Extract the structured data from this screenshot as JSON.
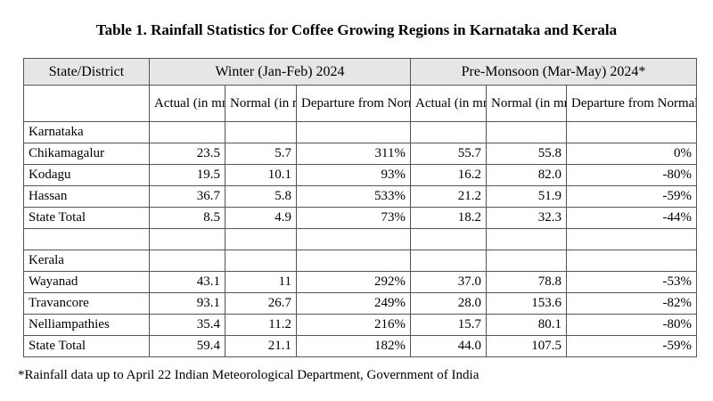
{
  "title": "Table 1. Rainfall Statistics for Coffee Growing Regions in Karnataka and Kerala",
  "headers": {
    "col1": "State/District",
    "winter": "Winter (Jan-Feb) 2024",
    "premonsoon": "Pre-Monsoon (Mar-May) 2024*",
    "sub": {
      "actual": "Actual (in mm)",
      "normal": "Normal (in mm)",
      "departure": "Departure from Normal"
    }
  },
  "karnataka": {
    "label": "Karnataka",
    "rows": [
      {
        "name": "Chikamagalur",
        "w_actual": "23.5",
        "w_normal": "5.7",
        "w_dep": "311%",
        "p_actual": "55.7",
        "p_normal": "55.8",
        "p_dep": "0%"
      },
      {
        "name": "Kodagu",
        "w_actual": "19.5",
        "w_normal": "10.1",
        "w_dep": "93%",
        "p_actual": "16.2",
        "p_normal": "82.0",
        "p_dep": "-80%"
      },
      {
        "name": "Hassan",
        "w_actual": "36.7",
        "w_normal": "5.8",
        "w_dep": "533%",
        "p_actual": "21.2",
        "p_normal": "51.9",
        "p_dep": "-59%"
      }
    ],
    "total": {
      "name": "State Total",
      "w_actual": "8.5",
      "w_normal": "4.9",
      "w_dep": "73%",
      "p_actual": "18.2",
      "p_normal": "32.3",
      "p_dep": "-44%"
    }
  },
  "kerala": {
    "label": "Kerala",
    "rows": [
      {
        "name": "Wayanad",
        "w_actual": "43.1",
        "w_normal": "11",
        "w_dep": "292%",
        "p_actual": "37.0",
        "p_normal": "78.8",
        "p_dep": "-53%"
      },
      {
        "name": "Travancore",
        "w_actual": "93.1",
        "w_normal": "26.7",
        "w_dep": "249%",
        "p_actual": "28.0",
        "p_normal": "153.6",
        "p_dep": "-82%"
      },
      {
        "name": "Nelliampathies",
        "w_actual": "35.4",
        "w_normal": "11.2",
        "w_dep": "216%",
        "p_actual": "15.7",
        "p_normal": "80.1",
        "p_dep": "-80%"
      }
    ],
    "total": {
      "name": "State Total",
      "w_actual": "59.4",
      "w_normal": "21.1",
      "w_dep": "182%",
      "p_actual": "44.0",
      "p_normal": "107.5",
      "p_dep": "-59%"
    }
  },
  "footnote": "*Rainfall data up to April 22 Indian Meteorological Department, Government of India"
}
